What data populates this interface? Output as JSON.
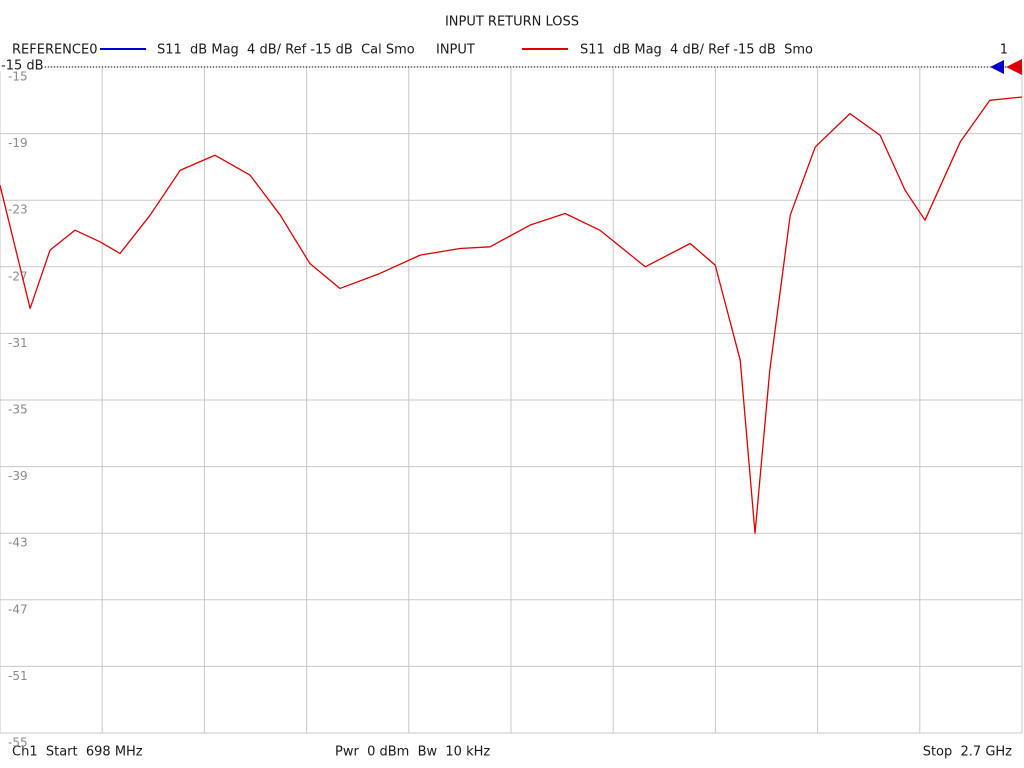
{
  "chart_data": {
    "type": "line",
    "title": "INPUT RETURN LOSS",
    "reference_trace": {
      "name": "REFERENCE0",
      "color": "#0000cc",
      "description": "S11  dB Mag  4 dB/ Ref -15 dB  Cal Smo"
    },
    "series": [
      {
        "name": "INPUT",
        "color": "#dd0000",
        "description": "S11  dB Mag  4 dB/ Ref -15 dB  Smo",
        "values": [
          -22.1,
          -29.5,
          -26.0,
          -24.8,
          -25.5,
          -26.2,
          -23.9,
          -21.2,
          -20.3,
          -21.5,
          -23.9,
          -26.8,
          -28.3,
          -27.4,
          -26.3,
          -25.9,
          -25.8,
          -24.5,
          -23.8,
          -24.8,
          -27.0,
          -25.6,
          -26.9,
          -32.6,
          -43.0,
          -33.2,
          -23.9,
          -19.8,
          -17.8,
          -19.1,
          -22.4,
          -24.2,
          -19.5,
          -17.0,
          -16.8
        ]
      }
    ],
    "x": [
      698,
      757,
      796,
      845,
      894,
      933,
      992,
      1051,
      1119,
      1188,
      1247,
      1305,
      1364,
      1442,
      1521,
      1599,
      1658,
      1736,
      1805,
      1873,
      1962,
      2050,
      2099,
      2148,
      2177,
      2206,
      2246,
      2295,
      2363,
      2422,
      2471,
      2510,
      2579,
      2637,
      2700
    ],
    "xlim": [
      698,
      2700
    ],
    "xticks": [
      698,
      898.2,
      1098.4,
      1298.6,
      1498.8,
      1699,
      1899.2,
      2099.4,
      2299.6,
      2499.8,
      2700
    ],
    "ylim": [
      -55,
      -15
    ],
    "yticks": [
      -15,
      -19,
      -23,
      -27,
      -31,
      -35,
      -39,
      -43,
      -47,
      -51,
      -55
    ],
    "ref_value": -15,
    "ref_label": "-15 dB",
    "trace_number": "1",
    "grid": true,
    "start_label": "Ch1  Start  698 MHz",
    "power_label": "Pwr  0 dBm  Bw  10 kHz",
    "stop_label": "Stop  2.7 GHz"
  }
}
